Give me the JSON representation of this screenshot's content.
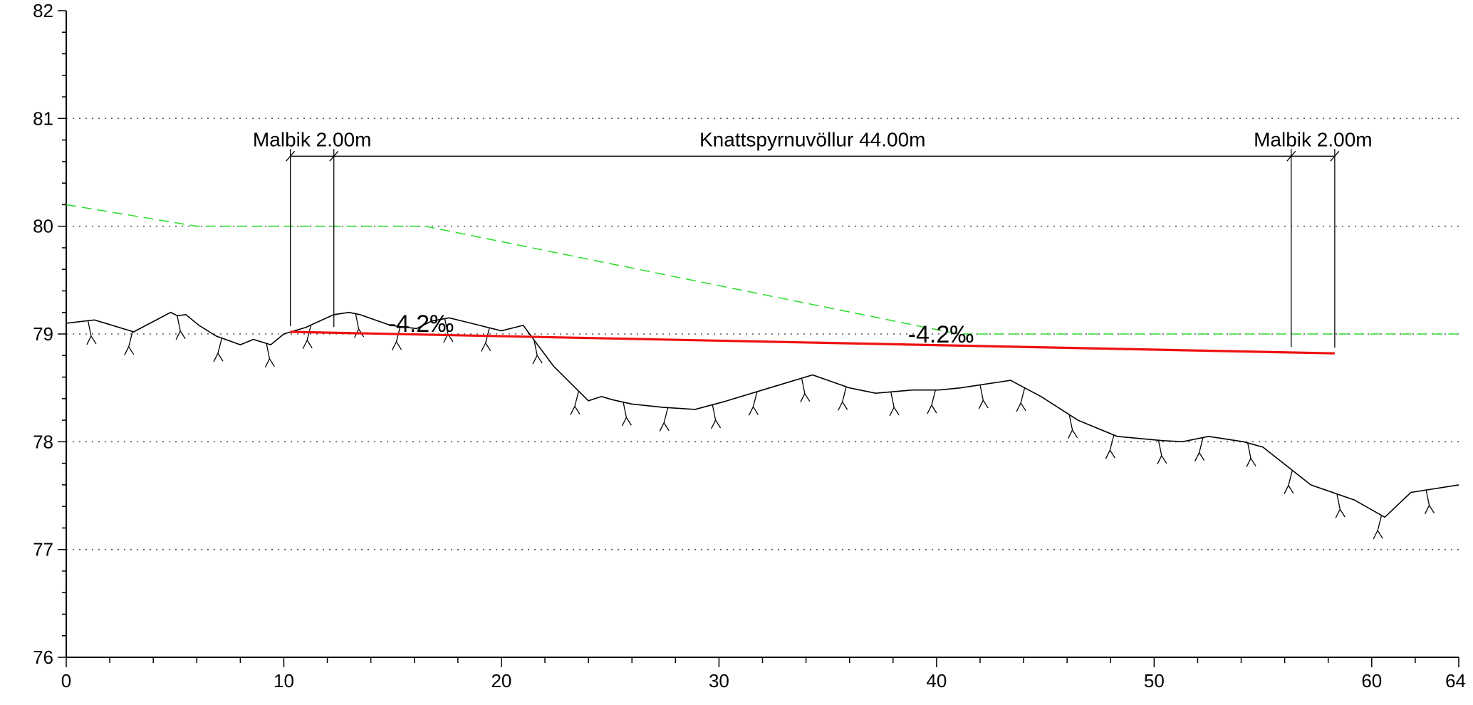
{
  "chart_data": {
    "type": "line",
    "title": "",
    "xlabel": "",
    "ylabel": "",
    "xlim": [
      0,
      64
    ],
    "ylim": [
      76,
      82
    ],
    "x_ticks": [
      "0",
      "10",
      "20",
      "30",
      "40",
      "50",
      "60",
      "64"
    ],
    "y_ticks": [
      "76",
      "77",
      "78",
      "79",
      "80",
      "81",
      "82"
    ],
    "grid_y_dotted": [
      77,
      78,
      79,
      80,
      81
    ],
    "series": [
      {
        "key": "existing_ground",
        "color": "#000000",
        "style": "solid-with-tree-symbols",
        "x": [
          0,
          1.3,
          3.1,
          4.8,
          5.1,
          5.5,
          6.1,
          6.9,
          8.0,
          8.6,
          9.4,
          10.0,
          11.0,
          12.3,
          13.0,
          13.5,
          14.9,
          16.1,
          16.8,
          17.6,
          18.6,
          20.0,
          21.0,
          22.4,
          24.0,
          24.6,
          25.1,
          26.0,
          27.4,
          28.9,
          30.2,
          32.0,
          34.3,
          36.0,
          37.2,
          38.9,
          40.1,
          41.1,
          43.4,
          44.8,
          46.5,
          48.3,
          50.4,
          51.3,
          52.5,
          54.1,
          55.0,
          57.2,
          59.2,
          60.6,
          61.8,
          64.0
        ],
        "y": [
          79.1,
          79.13,
          79.02,
          79.2,
          79.17,
          79.18,
          79.08,
          78.98,
          78.9,
          78.95,
          78.9,
          79.0,
          79.06,
          79.18,
          79.2,
          79.18,
          79.08,
          79.05,
          79.12,
          79.15,
          79.1,
          79.03,
          79.08,
          78.7,
          78.38,
          78.42,
          78.39,
          78.35,
          78.32,
          78.3,
          78.37,
          78.48,
          78.62,
          78.5,
          78.45,
          78.48,
          78.48,
          78.5,
          78.57,
          78.42,
          78.2,
          78.05,
          78.01,
          78.0,
          78.05,
          78.0,
          77.95,
          77.6,
          77.46,
          77.3,
          77.53,
          77.6
        ]
      },
      {
        "key": "terrain_design",
        "color": "#33dd33",
        "style": "dashed",
        "x": [
          0,
          6.0,
          16.5,
          41.0,
          64.0
        ],
        "y": [
          80.2,
          80.0,
          80.0,
          79.0,
          79.0
        ]
      },
      {
        "key": "pitch_design",
        "color": "#ee1111",
        "style": "solid",
        "x": [
          10.3,
          58.3
        ],
        "y": [
          79.02,
          78.82
        ]
      }
    ],
    "dimensions": {
      "line_level": 80.65,
      "segments": [
        {
          "label": "Malbik 2.00m",
          "x_from": 10.3,
          "x_to": 12.3,
          "label_x": 11.3
        },
        {
          "label": "Knattspyrnuvöllur 44.00m",
          "x_from": 12.3,
          "x_to": 56.3,
          "label_x": 34.3
        },
        {
          "label": "Malbik 2.00m",
          "x_from": 56.3,
          "x_to": 58.3,
          "label_x": 57.3
        }
      ]
    },
    "annotations": [
      {
        "text": "-4.2‰",
        "x": 16.3,
        "y": 79.1
      },
      {
        "text": "-4.2‰",
        "x": 40.2,
        "y": 79.0
      }
    ]
  }
}
